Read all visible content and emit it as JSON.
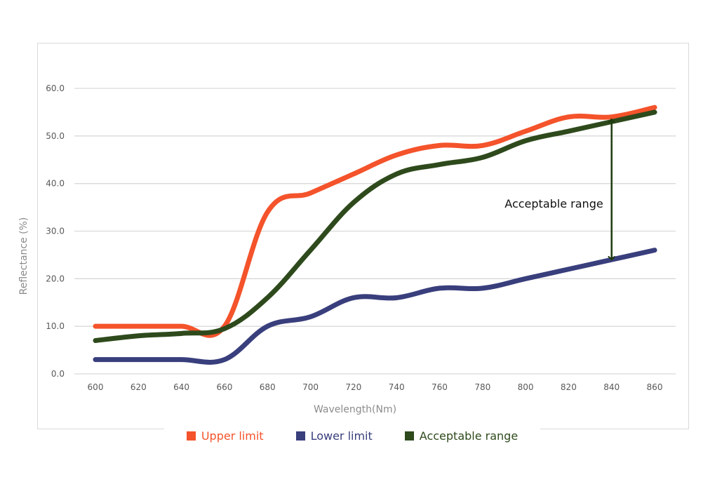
{
  "chart_data": {
    "type": "line",
    "title": "",
    "xlabel": "Wavelength(Nm)",
    "ylabel": "Reflectance (%)",
    "x": [
      600,
      620,
      640,
      660,
      680,
      700,
      720,
      740,
      760,
      780,
      800,
      820,
      840,
      860
    ],
    "x_tick_labels": [
      "600",
      "620",
      "640",
      "660",
      "680",
      "700",
      "720",
      "740",
      "760",
      "780",
      "800",
      "820",
      "840",
      "860"
    ],
    "y_tick_labels": [
      "0.0",
      "10.0",
      "20.0",
      "30.0",
      "40.0",
      "50.0",
      "60.0"
    ],
    "ylim": [
      0,
      60
    ],
    "grid": true,
    "legend_position": "bottom",
    "series": [
      {
        "name": "Upper limit",
        "color": "#f4532b",
        "values": [
          10,
          10,
          10,
          10,
          34,
          38,
          42,
          46,
          48,
          48,
          51,
          54,
          54,
          56
        ]
      },
      {
        "name": "Lower limit",
        "color": "#393e7c",
        "values": [
          3,
          3,
          3,
          3,
          10,
          12,
          16,
          16,
          18,
          18,
          20,
          22,
          24,
          26
        ]
      },
      {
        "name": "Acceptable range",
        "color": "#2e4a1c",
        "values": [
          7,
          8,
          8.5,
          9.5,
          16,
          26,
          36,
          42,
          44,
          45.5,
          49,
          51,
          53,
          55
        ]
      }
    ],
    "annotation": {
      "text": "Acceptable range",
      "x": 840,
      "y_from": 24,
      "y_to": 53.5,
      "color": "#1f3a0f"
    }
  },
  "legend": {
    "items": [
      {
        "label": "Upper limit",
        "color": "#f4532b"
      },
      {
        "label": "Lower limit",
        "color": "#393e7c"
      },
      {
        "label": "Acceptable range",
        "color": "#2e4a1c"
      }
    ]
  }
}
